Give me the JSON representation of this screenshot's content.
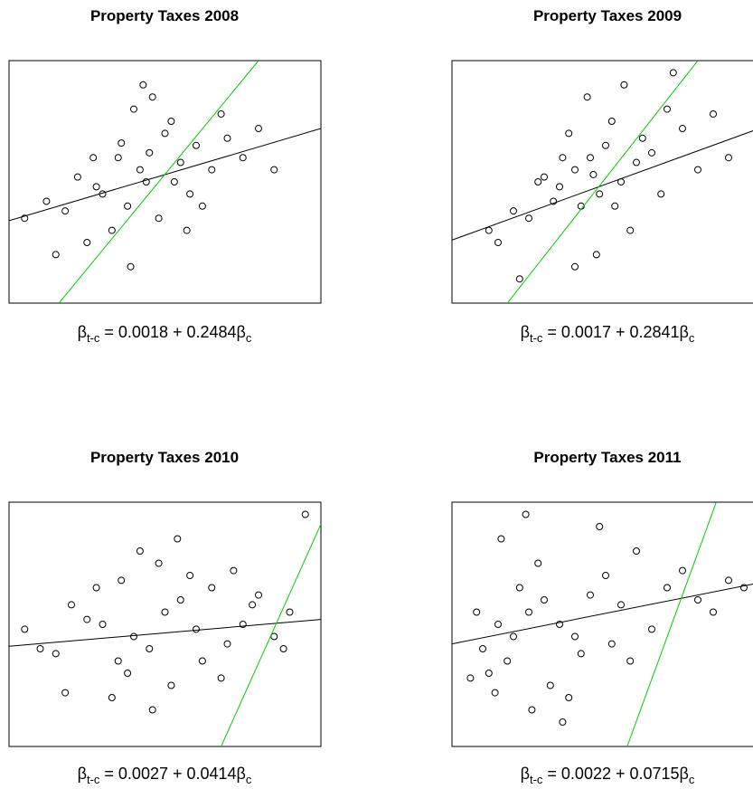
{
  "chart_data": [
    {
      "type": "scatter",
      "title": "Property Taxes 2008",
      "xlim": [
        0,
        100
      ],
      "ylim": [
        0,
        100
      ],
      "series": [
        {
          "color": "#000000",
          "x": [
            35,
            42,
            28,
            50,
            45,
            38,
            55,
            60,
            22,
            30,
            48,
            52,
            65,
            70,
            18,
            12,
            40,
            33,
            58,
            44,
            25,
            36,
            62,
            75,
            80,
            5,
            15,
            46,
            53,
            68,
            39,
            27,
            57,
            43,
            85
          ],
          "y": [
            60,
            55,
            48,
            70,
            62,
            40,
            58,
            65,
            52,
            45,
            35,
            75,
            55,
            68,
            38,
            42,
            80,
            30,
            45,
            50,
            25,
            66,
            40,
            60,
            72,
            35,
            20,
            85,
            50,
            78,
            15,
            60,
            30,
            90,
            55
          ]
        }
      ],
      "lines": [
        {
          "color": "#000000",
          "x": [
            0,
            100
          ],
          "y": [
            34,
            72
          ]
        },
        {
          "color": "#00cc00",
          "x": [
            16,
            80
          ],
          "y": [
            0,
            100
          ]
        }
      ],
      "equation": {
        "lhs": "β",
        "lhs_sub": "t-c",
        "rhs": " = 0.0018 + 0.2484β",
        "rhs_sub": "c"
      }
    },
    {
      "type": "scatter",
      "title": "Property Taxes 2009",
      "xlim": [
        0,
        100
      ],
      "ylim": [
        0,
        100
      ],
      "series": [
        {
          "color": "#000000",
          "x": [
            40,
            45,
            35,
            50,
            55,
            42,
            38,
            60,
            48,
            30,
            25,
            52,
            65,
            70,
            58,
            33,
            20,
            15,
            44,
            62,
            47,
            36,
            28,
            75,
            80,
            90,
            12,
            56,
            68,
            40,
            53,
            85,
            22,
            46,
            72
          ],
          "y": [
            55,
            60,
            48,
            65,
            50,
            40,
            70,
            58,
            45,
            52,
            35,
            75,
            62,
            80,
            30,
            42,
            38,
            25,
            85,
            68,
            20,
            60,
            50,
            72,
            55,
            60,
            30,
            90,
            45,
            15,
            40,
            78,
            10,
            53,
            95
          ]
        }
      ],
      "lines": [
        {
          "color": "#000000",
          "x": [
            0,
            100
          ],
          "y": [
            26,
            72
          ]
        },
        {
          "color": "#00cc00",
          "x": [
            18,
            80
          ],
          "y": [
            0,
            100
          ]
        }
      ],
      "equation": {
        "lhs": "β",
        "lhs_sub": "t-c",
        "rhs": " = 0.0017 + 0.2841β",
        "rhs_sub": "c"
      }
    },
    {
      "type": "scatter",
      "title": "Property Taxes 2010",
      "xlim": [
        0,
        100
      ],
      "ylim": [
        0,
        100
      ],
      "series": [
        {
          "color": "#000000",
          "x": [
            30,
            40,
            50,
            45,
            55,
            35,
            25,
            60,
            65,
            70,
            20,
            15,
            75,
            80,
            85,
            48,
            38,
            52,
            58,
            42,
            33,
            62,
            90,
            10,
            5,
            28,
            68,
            72,
            46,
            54,
            78,
            18,
            95,
            36,
            88
          ],
          "y": [
            50,
            45,
            55,
            40,
            60,
            35,
            52,
            48,
            65,
            42,
            58,
            38,
            50,
            62,
            45,
            75,
            30,
            25,
            70,
            80,
            20,
            35,
            55,
            40,
            48,
            65,
            28,
            72,
            15,
            85,
            58,
            22,
            95,
            68,
            40
          ]
        }
      ],
      "lines": [
        {
          "color": "#000000",
          "x": [
            0,
            100
          ],
          "y": [
            41,
            52
          ]
        },
        {
          "color": "#00cc00",
          "x": [
            68,
            100
          ],
          "y": [
            0,
            91
          ]
        }
      ],
      "equation": {
        "lhs": "β",
        "lhs_sub": "t-c",
        "rhs": " = 0.0027 + 0.0414β",
        "rhs_sub": "c"
      }
    },
    {
      "type": "scatter",
      "title": "Property Taxes 2011",
      "xlim": [
        0,
        100
      ],
      "ylim": [
        0,
        100
      ],
      "series": [
        {
          "color": "#000000",
          "x": [
            15,
            20,
            25,
            10,
            30,
            18,
            22,
            12,
            35,
            28,
            8,
            40,
            45,
            50,
            32,
            55,
            60,
            38,
            65,
            70,
            26,
            16,
            42,
            75,
            80,
            85,
            48,
            6,
            58,
            24,
            90,
            36,
            14,
            52,
            95
          ],
          "y": [
            50,
            45,
            55,
            40,
            60,
            35,
            65,
            30,
            50,
            75,
            55,
            45,
            62,
            70,
            25,
            58,
            80,
            20,
            48,
            65,
            15,
            85,
            38,
            72,
            60,
            55,
            90,
            28,
            35,
            95,
            68,
            10,
            22,
            42,
            65
          ]
        }
      ],
      "lines": [
        {
          "color": "#000000",
          "x": [
            0,
            100
          ],
          "y": [
            42,
            67
          ]
        },
        {
          "color": "#00cc00",
          "x": [
            57,
            86
          ],
          "y": [
            0,
            100
          ]
        }
      ],
      "equation": {
        "lhs": "β",
        "lhs_sub": "t-c",
        "rhs": " = 0.0022 + 0.0715β",
        "rhs_sub": "c"
      }
    }
  ]
}
